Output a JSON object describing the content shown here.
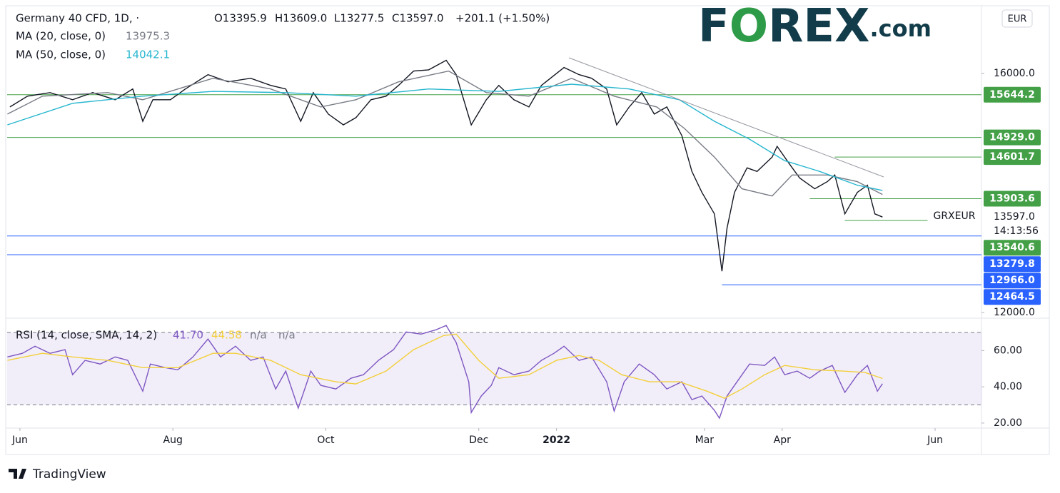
{
  "branding": {
    "logo": [
      "F",
      "O",
      "REX",
      ".com"
    ],
    "footer": "TradingView"
  },
  "chart_data": [
    {
      "type": "line",
      "title": "Germany 40 CFD, 1D, ·",
      "ohlc": [
        "O13395.9",
        "H13609.0",
        "L13277.5",
        "C13597.0",
        "+201.1 (+1.50%)"
      ],
      "currency": "EUR",
      "xlim": [
        -5.1,
        383.5
      ],
      "ylim": [
        11916,
        17110
      ],
      "yticks": [
        {
          "value": 12000,
          "label": "12000.0"
        },
        {
          "value": 16000,
          "label": "16000.0"
        }
      ],
      "xticks": [
        {
          "value": 0,
          "label": "Jun"
        },
        {
          "value": 61,
          "label": "Aug"
        },
        {
          "value": 122,
          "label": "Oct"
        },
        {
          "value": 183,
          "label": "Dec"
        },
        {
          "value": 214,
          "label": "2022"
        },
        {
          "value": 273,
          "label": "Mar"
        },
        {
          "value": 304,
          "label": "Apr"
        },
        {
          "value": 365,
          "label": "Jun"
        }
      ],
      "series": [
        {
          "color": "#131722",
          "x": [
            -4,
            3,
            12,
            21,
            29,
            38,
            45,
            49,
            53,
            60,
            66,
            75,
            83,
            92,
            100,
            106,
            112,
            117,
            123,
            129,
            134,
            140,
            146,
            151,
            157,
            163,
            170,
            174,
            180,
            186,
            191,
            197,
            203,
            208,
            217,
            223,
            228,
            234,
            238,
            243,
            248,
            253,
            258,
            264,
            268,
            272,
            277,
            280,
            282,
            285,
            290,
            294,
            300,
            302,
            307,
            311,
            317,
            322,
            325,
            329,
            334,
            338,
            341,
            344
          ],
          "values": [
            15440,
            15620,
            15680,
            15560,
            15680,
            15560,
            15740,
            15200,
            15560,
            15560,
            15740,
            15980,
            15860,
            15920,
            15800,
            15740,
            15200,
            15680,
            15320,
            15140,
            15260,
            15560,
            15620,
            15800,
            16040,
            16060,
            16220,
            15980,
            15140,
            15560,
            15800,
            15560,
            15440,
            15800,
            16100,
            15980,
            15920,
            15740,
            15140,
            15440,
            15680,
            15320,
            15440,
            14960,
            14360,
            14010,
            13650,
            12690,
            13410,
            14010,
            14420,
            14360,
            14600,
            14780,
            14480,
            14250,
            14070,
            14190,
            14300,
            13650,
            14010,
            14130,
            13650,
            13597
          ]
        },
        {
          "name": "MA (20, close, 0)",
          "last_label": "13975.3",
          "color": "#787b86",
          "x": [
            -5,
            9,
            35,
            49,
            77,
            100,
            120,
            134,
            151,
            171,
            186,
            203,
            220,
            237,
            254,
            265,
            277,
            288,
            300,
            308,
            322,
            334,
            344
          ],
          "values": [
            15320,
            15620,
            15680,
            15560,
            15920,
            15740,
            15440,
            15560,
            15860,
            16040,
            15680,
            15620,
            15920,
            15620,
            15440,
            15080,
            14600,
            14070,
            13950,
            14300,
            14300,
            14190,
            13975
          ]
        },
        {
          "name": "MA (50, close, 0)",
          "last_label": "14042.1",
          "color": "#26b6cf",
          "x": [
            -5,
            21,
            49,
            77,
            106,
            134,
            163,
            191,
            220,
            243,
            263,
            277,
            291,
            305,
            319,
            334,
            344
          ],
          "values": [
            15140,
            15500,
            15620,
            15700,
            15680,
            15620,
            15740,
            15700,
            15820,
            15740,
            15560,
            15200,
            14900,
            14540,
            14360,
            14130,
            14042
          ]
        }
      ],
      "last_price": {
        "value": 13597.0,
        "label": "13597.0"
      },
      "countdown": "14:13:56",
      "symbol": "GRXEUR",
      "levels": [
        {
          "value": 15644.2,
          "color": "#43a047"
        },
        {
          "value": 14929.0,
          "label": "14929.0",
          "color": "#43a047"
        },
        {
          "value": 14601.7,
          "color": "#43a047",
          "x_start": 325
        },
        {
          "value": 13903.6,
          "color": "#43a047",
          "x_start": 315
        },
        {
          "value": 13540.6,
          "color": "#43a047",
          "x_start": 329,
          "x_end": 362
        },
        {
          "value": 13279.8,
          "color": "#2962ff"
        },
        {
          "value": 12966.0,
          "label": "12966.0",
          "color": "#2962ff"
        },
        {
          "value": 12464.5,
          "color": "#2962ff",
          "x_start": 280
        }
      ]
    },
    {
      "type": "line",
      "title": "RSI (14, close, SMA, 14, 2)",
      "ylim": [
        18,
        77.1
      ],
      "yticks": [
        {
          "value": 60,
          "label": "60.00"
        },
        {
          "value": 40,
          "label": "40.00"
        },
        {
          "value": 20,
          "label": "20.00"
        }
      ],
      "band": [
        30,
        70
      ],
      "extra": [
        "n/a",
        "n/a"
      ],
      "series": [
        {
          "last_label": "41.70",
          "color": "#7e57c2",
          "x": [
            -5,
            1,
            6,
            12,
            18,
            21,
            26,
            32,
            38,
            43,
            49,
            52,
            58,
            63,
            69,
            75,
            80,
            86,
            92,
            97,
            102,
            106,
            111,
            116,
            120,
            126,
            132,
            137,
            143,
            149,
            154,
            160,
            166,
            170,
            174,
            179,
            180,
            184,
            188,
            191,
            197,
            203,
            208,
            213,
            217,
            223,
            228,
            234,
            237,
            241,
            247,
            253,
            258,
            264,
            268,
            272,
            277,
            279,
            282,
            287,
            291,
            297,
            301,
            305,
            310,
            315,
            319,
            324,
            329,
            334,
            338,
            342,
            344
          ],
          "values": [
            56.5,
            58.5,
            62.4,
            58.5,
            60.5,
            46.7,
            54.6,
            52.6,
            56.5,
            54.6,
            37.6,
            52.6,
            50.6,
            49.4,
            56.5,
            66.4,
            56.5,
            62.4,
            54.6,
            56.5,
            38.8,
            48.7,
            28.2,
            48.7,
            40.8,
            38.8,
            44.7,
            46.7,
            54.6,
            60.5,
            70.3,
            69.1,
            71.5,
            73.9,
            64.4,
            42.8,
            25.8,
            34.9,
            40.8,
            50.6,
            46.7,
            48.7,
            54.6,
            58.5,
            62.4,
            54.6,
            56.5,
            42.8,
            26.6,
            42.8,
            52.6,
            46.7,
            38.8,
            42.8,
            32.9,
            34.9,
            27.0,
            22.7,
            34.9,
            44.7,
            52.6,
            51.8,
            56.5,
            46.7,
            48.7,
            44.7,
            48.7,
            51.8,
            36.9,
            46.7,
            51.8,
            37.6,
            41.7
          ]
        },
        {
          "last_label": "44.58",
          "color": "#f2cf3a",
          "x": [
            -5,
            9,
            21,
            35,
            49,
            63,
            77,
            86,
            100,
            112,
            126,
            134,
            146,
            157,
            169,
            174,
            183,
            191,
            203,
            214,
            223,
            231,
            240,
            251,
            263,
            274,
            281,
            288,
            297,
            305,
            317,
            328,
            337,
            344
          ],
          "values": [
            54.6,
            58.5,
            56.5,
            54.6,
            50.6,
            50.6,
            58.5,
            58.5,
            54.6,
            46.7,
            42.8,
            41.6,
            48.7,
            60.5,
            68.3,
            69.1,
            54.6,
            44.7,
            46.7,
            54.6,
            57.3,
            54.6,
            46.7,
            42.8,
            42.8,
            37.6,
            33.7,
            38.8,
            46.7,
            51.8,
            49.4,
            48.7,
            47.9,
            44.58
          ]
        }
      ]
    }
  ]
}
